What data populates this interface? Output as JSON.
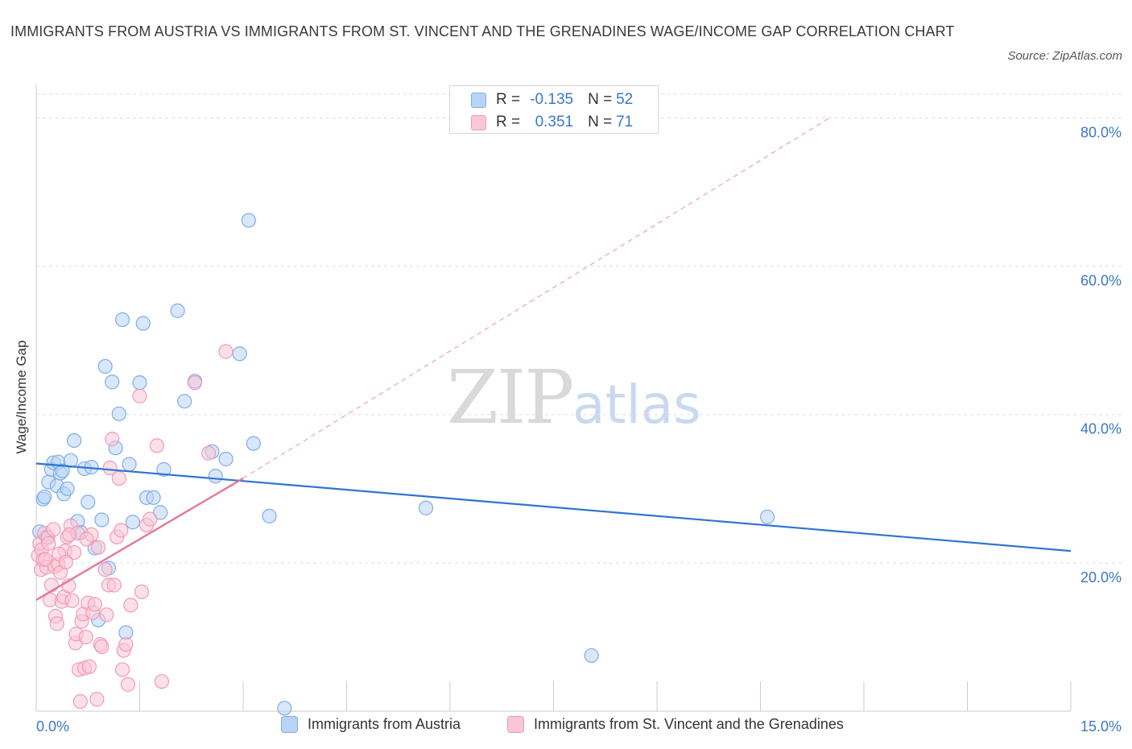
{
  "title": "IMMIGRANTS FROM AUSTRIA VS IMMIGRANTS FROM ST. VINCENT AND THE GRENADINES WAGE/INCOME GAP CORRELATION CHART",
  "source": "Source: ZipAtlas.com",
  "watermark": {
    "zip": "ZIP",
    "atlas": "atlas"
  },
  "legend_top": {
    "rows": [
      {
        "r_label": "R = ",
        "r_value": "-0.135",
        "n_label": "N = ",
        "n_value": "52"
      },
      {
        "r_label": "R = ",
        "r_value": "0.351",
        "n_label": "N = ",
        "n_value": "71"
      }
    ]
  },
  "colors": {
    "austria_fill": "#b8d3f5",
    "austria_stroke": "#7faee6",
    "austria_line": "#2f74d0",
    "stvincent_fill": "#f9c6d6",
    "stvincent_stroke": "#f29ab5",
    "stvincent_line": "#e4779b",
    "grid": "#dddddd",
    "axis_text": "#3b78c7"
  },
  "chart_data": {
    "type": "scatter",
    "title": "IMMIGRANTS FROM AUSTRIA VS IMMIGRANTS FROM ST. VINCENT AND THE GRENADINES WAGE/INCOME GAP CORRELATION CHART",
    "xlabel": "",
    "ylabel": "Wage/Income Gap",
    "xlim": [
      0,
      15
    ],
    "ylim": [
      0,
      80
    ],
    "x_tick_labels": [
      {
        "value": 0,
        "label": "0.0%"
      },
      {
        "value": 15,
        "label": "15.0%"
      }
    ],
    "y_tick_labels": [
      {
        "value": 20,
        "label": "20.0%"
      },
      {
        "value": 40,
        "label": "40.0%"
      },
      {
        "value": 60,
        "label": "60.0%"
      },
      {
        "value": 80,
        "label": "80.0%"
      }
    ],
    "grid": true,
    "legend_position": "bottom",
    "series": [
      {
        "name": "Immigrants from Austria",
        "r": -0.135,
        "n": 52,
        "trend": {
          "x0": 0,
          "y0": 33.4,
          "x1": 15,
          "y1": 21.6,
          "style": "solid"
        },
        "points": [
          [
            0.05,
            24.2
          ],
          [
            0.1,
            28.6
          ],
          [
            0.12,
            28.9
          ],
          [
            0.15,
            23.5
          ],
          [
            0.18,
            30.9
          ],
          [
            0.22,
            32.6
          ],
          [
            0.25,
            33.5
          ],
          [
            0.3,
            30.4
          ],
          [
            0.32,
            33.6
          ],
          [
            0.35,
            32.1
          ],
          [
            0.38,
            32.4
          ],
          [
            0.4,
            29.3
          ],
          [
            0.45,
            30.0
          ],
          [
            0.5,
            33.8
          ],
          [
            0.55,
            36.5
          ],
          [
            0.6,
            25.6
          ],
          [
            0.65,
            24.1
          ],
          [
            0.7,
            32.7
          ],
          [
            0.75,
            28.2
          ],
          [
            0.8,
            32.9
          ],
          [
            0.85,
            22.0
          ],
          [
            0.9,
            12.3
          ],
          [
            0.95,
            25.8
          ],
          [
            1.0,
            46.5
          ],
          [
            1.05,
            19.3
          ],
          [
            1.1,
            44.4
          ],
          [
            1.15,
            35.5
          ],
          [
            1.2,
            40.1
          ],
          [
            1.25,
            52.8
          ],
          [
            1.3,
            10.6
          ],
          [
            1.35,
            33.3
          ],
          [
            1.4,
            25.5
          ],
          [
            1.5,
            44.3
          ],
          [
            1.55,
            52.3
          ],
          [
            1.6,
            28.8
          ],
          [
            1.7,
            28.8
          ],
          [
            1.8,
            26.8
          ],
          [
            1.85,
            32.6
          ],
          [
            2.05,
            54.0
          ],
          [
            2.15,
            41.8
          ],
          [
            2.3,
            44.5
          ],
          [
            2.6,
            31.7
          ],
          [
            2.55,
            35.0
          ],
          [
            2.75,
            34.0
          ],
          [
            2.95,
            48.2
          ],
          [
            3.08,
            66.2
          ],
          [
            3.15,
            36.1
          ],
          [
            3.38,
            26.3
          ],
          [
            3.6,
            0.4
          ],
          [
            5.65,
            27.4
          ],
          [
            8.05,
            7.5
          ],
          [
            10.6,
            26.2
          ]
        ]
      },
      {
        "name": "Immigrants from St. Vincent and the Grenadines",
        "r": 0.351,
        "n": 71,
        "trend": {
          "x0": 0,
          "y0": 15.0,
          "x1": 3.0,
          "y1": 31.4,
          "style": "solid",
          "extension": {
            "x1": 11.5,
            "y1": 80.0,
            "style": "dashed"
          }
        },
        "points": [
          [
            0.03,
            21.0
          ],
          [
            0.05,
            22.6
          ],
          [
            0.07,
            19.1
          ],
          [
            0.08,
            21.8
          ],
          [
            0.1,
            20.4
          ],
          [
            0.12,
            24.0
          ],
          [
            0.15,
            19.4
          ],
          [
            0.17,
            23.4
          ],
          [
            0.2,
            15.0
          ],
          [
            0.22,
            17.0
          ],
          [
            0.25,
            24.5
          ],
          [
            0.27,
            19.5
          ],
          [
            0.28,
            12.8
          ],
          [
            0.3,
            11.8
          ],
          [
            0.32,
            19.8
          ],
          [
            0.35,
            18.7
          ],
          [
            0.37,
            14.8
          ],
          [
            0.4,
            15.4
          ],
          [
            0.42,
            21.6
          ],
          [
            0.45,
            23.5
          ],
          [
            0.47,
            16.9
          ],
          [
            0.5,
            25.0
          ],
          [
            0.52,
            14.9
          ],
          [
            0.55,
            21.4
          ],
          [
            0.57,
            9.2
          ],
          [
            0.58,
            10.4
          ],
          [
            0.6,
            24.0
          ],
          [
            0.62,
            5.6
          ],
          [
            0.64,
            1.3
          ],
          [
            0.66,
            12.1
          ],
          [
            0.68,
            13.1
          ],
          [
            0.7,
            5.8
          ],
          [
            0.72,
            10.0
          ],
          [
            0.75,
            14.6
          ],
          [
            0.77,
            6.0
          ],
          [
            0.8,
            23.8
          ],
          [
            0.82,
            13.3
          ],
          [
            0.85,
            14.4
          ],
          [
            0.88,
            1.6
          ],
          [
            0.9,
            22.1
          ],
          [
            0.93,
            9.0
          ],
          [
            0.95,
            8.7
          ],
          [
            1.0,
            19.1
          ],
          [
            1.02,
            13.0
          ],
          [
            1.05,
            17.0
          ],
          [
            1.07,
            32.8
          ],
          [
            1.1,
            36.7
          ],
          [
            1.13,
            17.0
          ],
          [
            1.17,
            23.5
          ],
          [
            1.2,
            31.4
          ],
          [
            1.23,
            24.4
          ],
          [
            1.25,
            5.6
          ],
          [
            1.27,
            8.2
          ],
          [
            1.3,
            9.0
          ],
          [
            1.33,
            3.6
          ],
          [
            1.37,
            14.3
          ],
          [
            1.5,
            42.5
          ],
          [
            1.53,
            16.1
          ],
          [
            1.6,
            25.1
          ],
          [
            1.65,
            25.9
          ],
          [
            1.75,
            35.8
          ],
          [
            1.82,
            4.0
          ],
          [
            2.3,
            44.3
          ],
          [
            2.5,
            34.8
          ],
          [
            2.75,
            48.5
          ],
          [
            0.18,
            22.6
          ],
          [
            0.33,
            21.2
          ],
          [
            0.48,
            23.8
          ],
          [
            0.73,
            23.2
          ],
          [
            0.13,
            20.5
          ],
          [
            0.43,
            20.1
          ]
        ]
      }
    ]
  },
  "bottom_legend": [
    {
      "label": "Immigrants from Austria"
    },
    {
      "label": "Immigrants from St. Vincent and the Grenadines"
    }
  ]
}
